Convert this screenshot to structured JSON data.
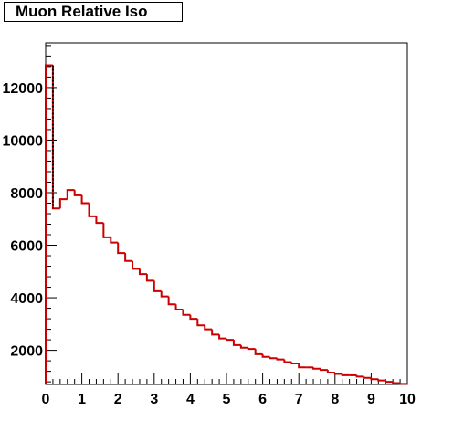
{
  "chart_data": {
    "type": "bar",
    "title": "Muon Relative Iso",
    "xlabel": "",
    "ylabel": "",
    "xlim": [
      0,
      10
    ],
    "ylim": [
      700,
      13700
    ],
    "grid": false,
    "x_ticks": [
      "0",
      "1",
      "2",
      "3",
      "4",
      "5",
      "6",
      "7",
      "8",
      "9",
      "10"
    ],
    "y_ticks": [
      "2000",
      "4000",
      "6000",
      "8000",
      "10000",
      "12000"
    ],
    "y_tick_values": [
      2000,
      4000,
      6000,
      8000,
      10000,
      12000
    ],
    "bin_width": 0.2,
    "series": [
      {
        "color": "#cc0000",
        "values": [
          12850,
          7400,
          7750,
          8100,
          7900,
          7600,
          7100,
          6850,
          6300,
          6100,
          5700,
          5400,
          5100,
          4900,
          4650,
          4250,
          4050,
          3750,
          3550,
          3350,
          3200,
          2950,
          2800,
          2600,
          2450,
          2400,
          2200,
          2100,
          2050,
          1850,
          1750,
          1700,
          1650,
          1550,
          1500,
          1350,
          1350,
          1300,
          1250,
          1150,
          1100,
          1050,
          1050,
          1000,
          950,
          900,
          850,
          800,
          750,
          720
        ]
      }
    ]
  }
}
